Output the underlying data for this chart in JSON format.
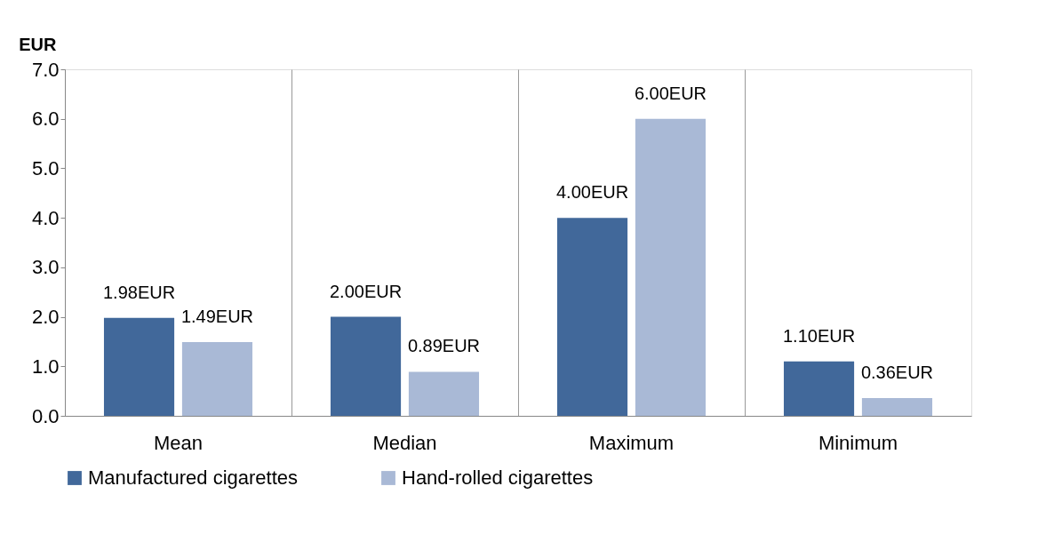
{
  "chart_data": {
    "type": "bar",
    "ylabel": "EUR",
    "categories": [
      "Mean",
      "Median",
      "Maximum",
      "Minimum"
    ],
    "series": [
      {
        "name": "Manufactured cigarettes",
        "color": "#41689a",
        "values": [
          1.98,
          2.0,
          4.0,
          1.1
        ],
        "value_labels": [
          "1.98EUR",
          "2.00EUR",
          "4.00EUR",
          "1.10EUR"
        ]
      },
      {
        "name": "Hand-rolled cigarettes",
        "color": "#a9b9d6",
        "values": [
          1.49,
          0.89,
          6.0,
          0.36
        ],
        "value_labels": [
          "1.49EUR",
          "0.89EUR",
          "6.00EUR",
          "0.36EUR"
        ]
      }
    ],
    "ylim": [
      0,
      7
    ],
    "yticks": [
      {
        "value": 0,
        "label": "0.0"
      },
      {
        "value": 1,
        "label": "1.0"
      },
      {
        "value": 2,
        "label": "2.0"
      },
      {
        "value": 3,
        "label": "3.0"
      },
      {
        "value": 4,
        "label": "4.0"
      },
      {
        "value": 5,
        "label": "5.0"
      },
      {
        "value": 6,
        "label": "6.0"
      },
      {
        "value": 7,
        "label": "7.0"
      }
    ],
    "grid": "x",
    "legend": "bottom"
  }
}
